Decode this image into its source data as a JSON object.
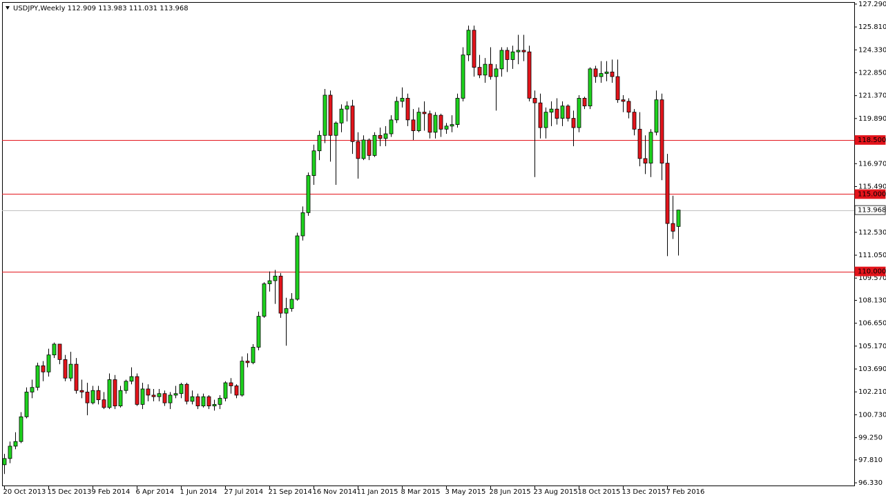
{
  "chart_data": {
    "type": "candlestick",
    "title": "USDJPY,Weekly  112.909 113.983 111.031 113.968",
    "categories": [
      "20 Oct 2013",
      null,
      null,
      null,
      null,
      null,
      null,
      null,
      "15 Dec 2013",
      null,
      null,
      null,
      null,
      null,
      null,
      null,
      "9 Feb 2014",
      null,
      null,
      null,
      null,
      null,
      null,
      null,
      "6 Apr 2014",
      null,
      null,
      null,
      null,
      null,
      null,
      null,
      "1 Jun 2014",
      null,
      null,
      null,
      null,
      null,
      null,
      null,
      "27 Jul 2014",
      null,
      null,
      null,
      null,
      null,
      null,
      null,
      "21 Sep 2014",
      null,
      null,
      null,
      null,
      null,
      null,
      null,
      "16 Nov 2014",
      null,
      null,
      null,
      null,
      null,
      null,
      null,
      "11 Jan 2015",
      null,
      null,
      null,
      null,
      null,
      null,
      null,
      "8 Mar 2015",
      null,
      null,
      null,
      null,
      null,
      null,
      null,
      "3 May 2015",
      null,
      null,
      null,
      null,
      null,
      null,
      null,
      "28 Jun 2015",
      null,
      null,
      null,
      null,
      null,
      null,
      null,
      "23 Aug 2015",
      null,
      null,
      null,
      null,
      null,
      null,
      null,
      "18 Oct 2015",
      null,
      null,
      null,
      null,
      null,
      null,
      null,
      "13 Dec 2015",
      null,
      null,
      null,
      null,
      null,
      null,
      null,
      "7 Feb 2016",
      null,
      null
    ],
    "open": [
      97.5,
      97.9,
      98.7,
      99.0,
      100.6,
      102.2,
      102.5,
      103.9,
      103.5,
      104.6,
      105.3,
      104.3,
      103.1,
      104.0,
      102.3,
      102.2,
      101.5,
      102.3,
      101.7,
      101.2,
      103.0,
      101.3,
      102.3,
      102.9,
      103.2,
      101.4,
      102.4,
      102.0,
      101.9,
      102.1,
      101.5,
      102.0,
      102.1,
      102.7,
      101.6,
      101.9,
      101.3,
      101.9,
      101.3,
      101.4,
      101.8,
      102.8,
      102.6,
      102.0,
      104.2,
      104.1,
      105.1,
      107.1,
      109.2,
      109.4,
      109.7,
      107.3,
      107.6,
      108.2,
      112.3,
      113.8,
      116.2,
      117.8,
      118.8,
      121.4,
      118.8,
      119.6,
      120.5,
      120.7,
      118.4,
      117.3,
      118.5,
      117.5,
      118.8,
      118.6,
      118.9,
      119.8,
      121.0,
      121.2,
      119.8,
      119.1,
      120.3,
      120.2,
      119.0,
      120.1,
      119.2,
      119.4,
      119.5,
      121.2,
      124.0,
      125.6,
      123.2,
      122.7,
      123.4,
      122.6,
      123.1,
      124.3,
      123.7,
      124.2,
      124.3,
      124.2,
      121.2,
      120.9,
      119.3,
      120.3,
      120.5,
      119.9,
      120.7,
      119.9,
      119.3,
      121.2,
      120.7,
      123.1,
      122.6,
      122.8,
      122.9,
      122.6,
      121.1,
      121.0,
      120.3,
      119.2,
      117.3,
      117.0,
      119.0,
      121.1,
      117.0,
      113.1,
      112.909
    ],
    "high": [
      98.2,
      99.0,
      99.6,
      100.9,
      102.5,
      103.0,
      104.1,
      104.2,
      105.0,
      105.4,
      105.3,
      104.6,
      104.8,
      104.4,
      103.0,
      102.8,
      102.6,
      102.6,
      102.2,
      103.4,
      103.3,
      102.6,
      103.0,
      103.8,
      103.4,
      102.8,
      102.7,
      102.4,
      102.4,
      102.3,
      102.2,
      102.6,
      102.8,
      102.8,
      102.3,
      102.1,
      102.1,
      102.0,
      101.7,
      102.0,
      102.9,
      103.1,
      102.7,
      104.5,
      104.7,
      105.3,
      107.4,
      109.3,
      110.0,
      110.1,
      109.9,
      108.3,
      108.6,
      112.5,
      114.2,
      116.4,
      118.2,
      119.1,
      121.8,
      121.7,
      119.7,
      120.8,
      121.0,
      121.1,
      119.0,
      118.8,
      118.6,
      119.0,
      119.3,
      119.4,
      120.1,
      121.3,
      121.9,
      121.5,
      120.5,
      120.6,
      121.0,
      120.4,
      120.3,
      120.2,
      119.6,
      120.1,
      121.5,
      124.5,
      125.9,
      125.9,
      124.0,
      123.8,
      124.5,
      123.4,
      124.5,
      124.5,
      124.6,
      125.3,
      125.3,
      124.6,
      121.7,
      121.5,
      120.6,
      121.0,
      121.2,
      121.0,
      120.8,
      120.4,
      121.4,
      121.3,
      123.2,
      123.3,
      123.6,
      123.6,
      123.7,
      123.7,
      121.4,
      121.2,
      120.5,
      120.3,
      118.8,
      119.2,
      121.7,
      121.5,
      117.6,
      114.9,
      113.983
    ],
    "low": [
      96.9,
      97.6,
      98.5,
      98.9,
      100.5,
      101.8,
      102.3,
      102.9,
      103.2,
      104.4,
      104.0,
      102.9,
      102.9,
      102.1,
      101.8,
      100.7,
      101.4,
      101.4,
      101.1,
      101.1,
      101.1,
      101.2,
      102.1,
      102.7,
      101.3,
      101.1,
      101.6,
      101.6,
      101.6,
      101.3,
      101.1,
      101.8,
      101.8,
      101.4,
      101.4,
      101.1,
      101.2,
      101.1,
      101.0,
      101.1,
      101.6,
      102.1,
      101.8,
      101.9,
      103.8,
      104.0,
      104.9,
      107.0,
      108.7,
      107.9,
      107.0,
      105.2,
      107.4,
      108.1,
      112.0,
      113.6,
      115.6,
      117.2,
      118.3,
      117.1,
      115.6,
      119.0,
      119.7,
      117.6,
      116.0,
      117.2,
      117.2,
      117.4,
      118.1,
      118.1,
      118.7,
      119.6,
      120.6,
      119.4,
      118.5,
      119.0,
      119.1,
      118.6,
      118.6,
      118.7,
      118.9,
      119.0,
      119.3,
      121.0,
      123.6,
      122.6,
      122.5,
      122.2,
      122.4,
      120.4,
      122.6,
      122.9,
      123.1,
      123.4,
      123.6,
      121.0,
      116.1,
      118.6,
      118.6,
      119.4,
      119.5,
      119.4,
      119.7,
      118.1,
      119.0,
      120.5,
      120.5,
      122.2,
      122.2,
      122.3,
      122.2,
      120.9,
      120.3,
      119.9,
      118.8,
      116.8,
      116.3,
      116.1,
      118.8,
      115.9,
      110.99,
      112.1,
      111.031
    ],
    "close": [
      97.9,
      98.7,
      99.0,
      100.6,
      102.2,
      102.5,
      103.9,
      103.5,
      104.6,
      105.3,
      104.3,
      103.1,
      104.0,
      102.3,
      102.2,
      101.5,
      102.3,
      101.7,
      101.2,
      103.0,
      101.3,
      102.3,
      102.9,
      103.2,
      101.4,
      102.4,
      102.0,
      101.9,
      102.1,
      101.5,
      102.0,
      102.1,
      102.7,
      101.6,
      101.9,
      101.3,
      101.9,
      101.3,
      101.4,
      101.8,
      102.8,
      102.6,
      102.0,
      104.2,
      104.1,
      105.1,
      107.1,
      109.2,
      109.4,
      109.7,
      107.3,
      107.6,
      108.2,
      112.3,
      113.8,
      116.2,
      117.8,
      118.8,
      121.4,
      118.8,
      119.6,
      120.5,
      120.7,
      118.4,
      117.3,
      118.5,
      117.5,
      118.8,
      118.6,
      118.9,
      119.8,
      121.0,
      121.2,
      119.8,
      119.1,
      120.3,
      120.2,
      119.0,
      120.1,
      119.2,
      119.4,
      119.5,
      121.2,
      124.0,
      125.6,
      123.2,
      122.7,
      123.4,
      122.6,
      123.1,
      124.3,
      123.7,
      124.2,
      124.3,
      124.2,
      121.2,
      120.9,
      119.3,
      120.3,
      120.5,
      119.9,
      120.7,
      119.9,
      119.3,
      121.2,
      120.7,
      123.1,
      122.6,
      122.8,
      122.9,
      122.6,
      121.1,
      121.0,
      120.3,
      119.2,
      117.3,
      117.0,
      119.0,
      121.1,
      117.0,
      113.1,
      112.6,
      113.968
    ],
    "up_color": "#1ed21e",
    "down_color": "#e3141b",
    "ylim": [
      96.11,
      127.42
    ],
    "yticks": [
      {
        "value": 127.29,
        "label": "127.290"
      },
      {
        "value": 125.81,
        "label": "125.810"
      },
      {
        "value": 124.33,
        "label": "124.330"
      },
      {
        "value": 122.85,
        "label": "122.850"
      },
      {
        "value": 121.37,
        "label": "121.370"
      },
      {
        "value": 119.89,
        "label": "119.890"
      },
      {
        "value": 116.97,
        "label": "116.970"
      },
      {
        "value": 115.49,
        "label": "115.490"
      },
      {
        "value": 112.53,
        "label": "112.530"
      },
      {
        "value": 111.05,
        "label": "111.050"
      },
      {
        "value": 109.57,
        "label": "109.570"
      },
      {
        "value": 108.13,
        "label": "108.130"
      },
      {
        "value": 106.65,
        "label": "106.650"
      },
      {
        "value": 105.17,
        "label": "105.170"
      },
      {
        "value": 103.69,
        "label": "103.690"
      },
      {
        "value": 102.21,
        "label": "102.210"
      },
      {
        "value": 100.73,
        "label": "100.730"
      },
      {
        "value": 99.25,
        "label": "99.250"
      },
      {
        "value": 97.81,
        "label": "97.810"
      },
      {
        "value": 96.33,
        "label": "96.330"
      }
    ],
    "hlines": [
      {
        "value": 118.5,
        "label": "118.500",
        "color": "#e3141b"
      },
      {
        "value": 115,
        "label": "115.000",
        "color": "#e3141b"
      },
      {
        "value": 110,
        "label": "110.000",
        "color": "#e3141b"
      },
      {
        "value": 113.968,
        "label": "113.968",
        "color": "#c0c0c0"
      }
    ]
  }
}
